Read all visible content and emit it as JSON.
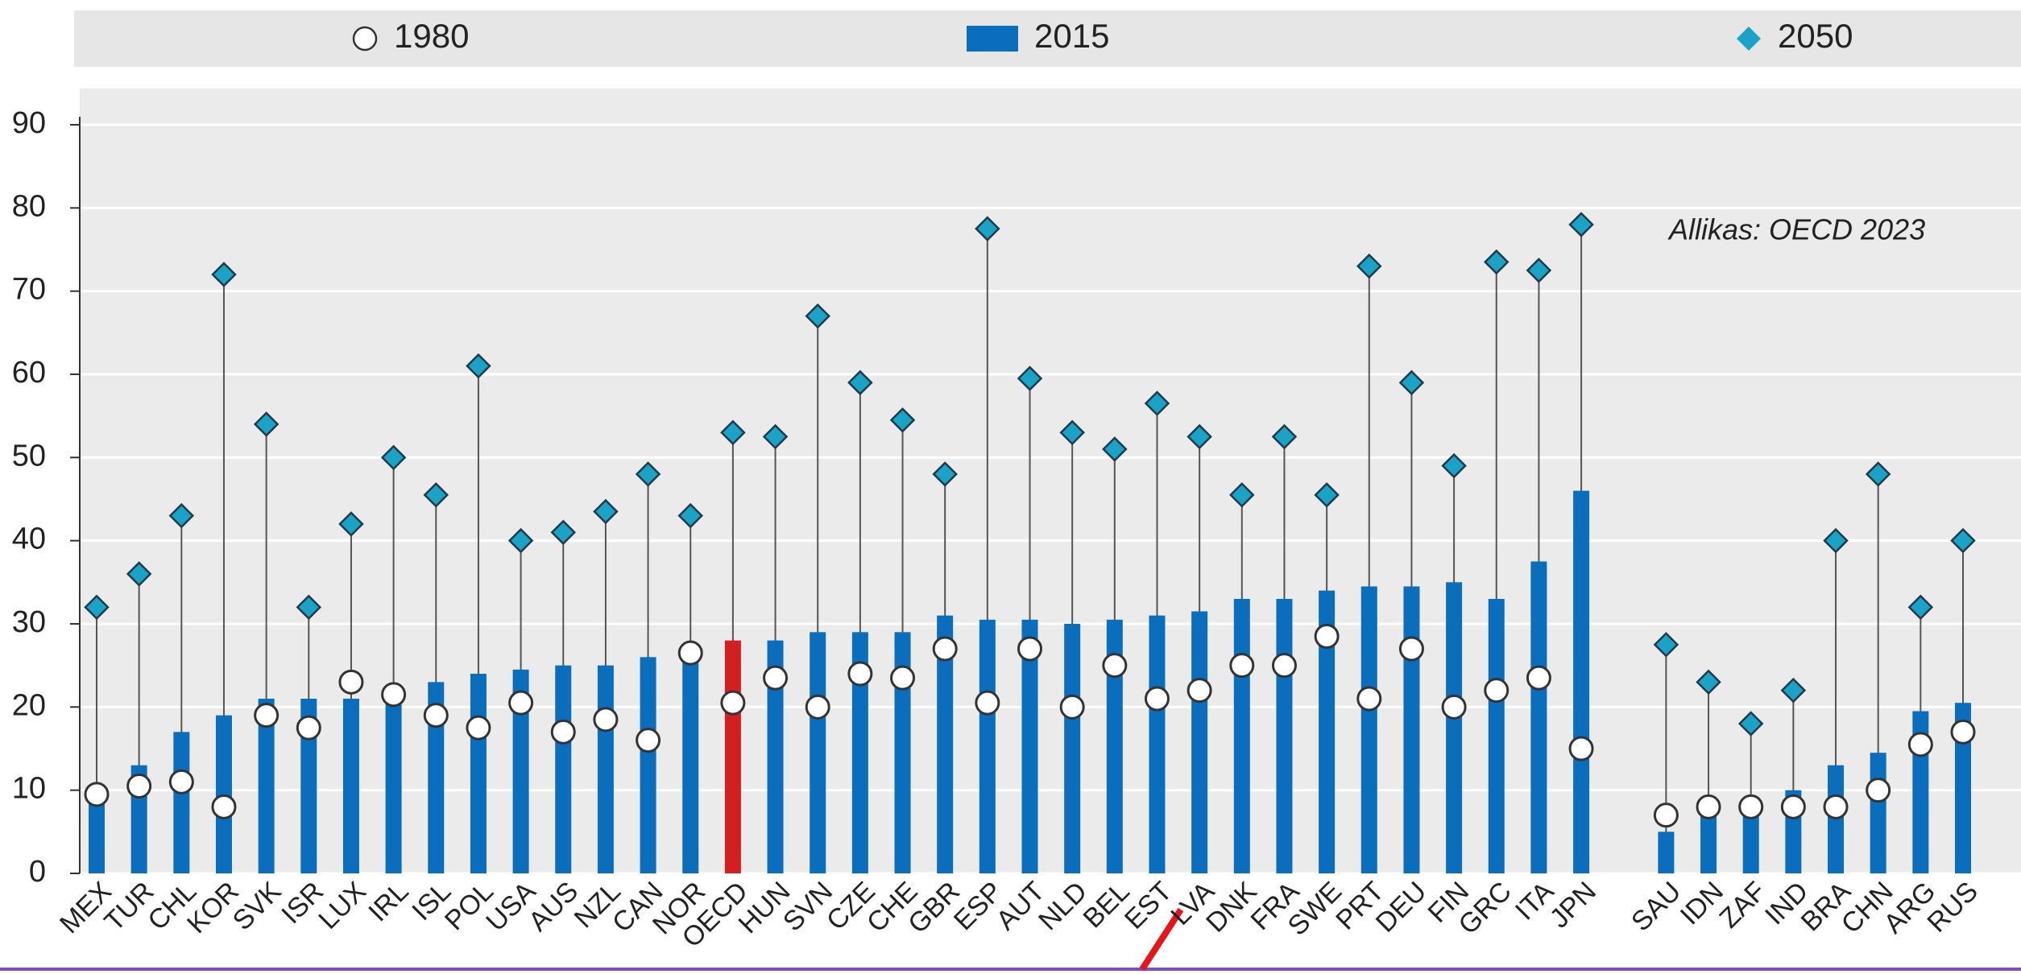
{
  "chart_data": {
    "type": "bar",
    "annotation": "Allikas: OECD 2023",
    "categories": [
      "MEX",
      "TUR",
      "CHL",
      "KOR",
      "SVK",
      "ISR",
      "LUX",
      "IRL",
      "ISL",
      "POL",
      "USA",
      "AUS",
      "NZL",
      "CAN",
      "NOR",
      "OECD",
      "HUN",
      "SVN",
      "CZE",
      "CHE",
      "GBR",
      "ESP",
      "AUT",
      "NLD",
      "BEL",
      "EST",
      "LVA",
      "DNK",
      "FRA",
      "SWE",
      "PRT",
      "DEU",
      "FIN",
      "GRC",
      "ITA",
      "JPN",
      null,
      "SAU",
      "IDN",
      "ZAF",
      "IND",
      "BRA",
      "CHN",
      "ARG",
      "RUS"
    ],
    "series": [
      {
        "name": "1980",
        "marker": "circle",
        "color": "#ffffff",
        "values": [
          9.5,
          10.5,
          11,
          8,
          19,
          17.5,
          23,
          21.5,
          19,
          17.5,
          20.5,
          17,
          18.5,
          16,
          26.5,
          20.5,
          23.5,
          20,
          24,
          23.5,
          27,
          20.5,
          27,
          20,
          25,
          21,
          22,
          25,
          25,
          28.5,
          21,
          27,
          20,
          22,
          23.5,
          15,
          null,
          7,
          8,
          8,
          8,
          8,
          10,
          15.5,
          17
        ]
      },
      {
        "name": "2015",
        "marker": "bar",
        "color": "#0a6ebd",
        "point_colors": [
          "#0a6ebd",
          "#0a6ebd",
          "#0a6ebd",
          "#0a6ebd",
          "#0a6ebd",
          "#0a6ebd",
          "#0a6ebd",
          "#0a6ebd",
          "#0a6ebd",
          "#0a6ebd",
          "#0a6ebd",
          "#0a6ebd",
          "#0a6ebd",
          "#0a6ebd",
          "#0a6ebd",
          "#d21f1f",
          "#0a6ebd",
          "#0a6ebd",
          "#0a6ebd",
          "#0a6ebd",
          "#0a6ebd",
          "#0a6ebd",
          "#0a6ebd",
          "#0a6ebd",
          "#0a6ebd",
          "#0a6ebd",
          "#0a6ebd",
          "#0a6ebd",
          "#0a6ebd",
          "#0a6ebd",
          "#0a6ebd",
          "#0a6ebd",
          "#0a6ebd",
          "#0a6ebd",
          "#0a6ebd",
          "#0a6ebd",
          "#0a6ebd",
          "#0a6ebd",
          "#0a6ebd",
          "#0a6ebd",
          "#0a6ebd",
          "#0a6ebd",
          "#0a6ebd",
          "#0a6ebd",
          "#0a6ebd"
        ],
        "values": [
          10,
          13,
          17,
          19,
          21,
          21,
          21,
          21,
          23,
          24,
          24.5,
          25,
          25,
          26,
          26,
          28,
          28,
          29,
          29,
          29,
          31,
          30.5,
          30.5,
          30,
          30.5,
          31,
          31.5,
          33,
          33,
          34,
          34.5,
          34.5,
          35,
          33,
          37.5,
          46,
          null,
          5,
          8,
          7,
          10,
          13,
          14.5,
          19.5,
          20.5
        ]
      },
      {
        "name": "2050",
        "marker": "diamond",
        "color": "#1aa3c7",
        "values": [
          32,
          36,
          43,
          72,
          54,
          32,
          42,
          50,
          45.5,
          61,
          40,
          41,
          43.5,
          48,
          43,
          53,
          52.5,
          67,
          59,
          54.5,
          48,
          77.5,
          59.5,
          53,
          51,
          56.5,
          52.5,
          45.5,
          52.5,
          45.5,
          73,
          59,
          49,
          73.5,
          72.5,
          78,
          null,
          27.5,
          23,
          18,
          22,
          40,
          48,
          32,
          40
        ]
      }
    ],
    "ylim": [
      0,
      90
    ],
    "yticks": [
      0,
      10,
      20,
      30,
      40,
      50,
      60,
      70,
      80,
      90
    ],
    "grid": true,
    "legend": "top"
  }
}
